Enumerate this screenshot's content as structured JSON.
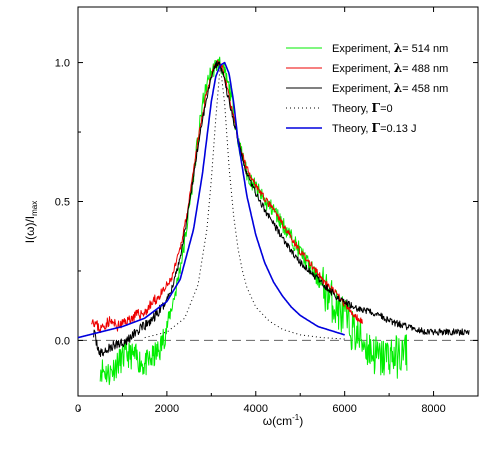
{
  "chart_data": {
    "type": "line",
    "xlabel": "ω(cm⁻¹)",
    "ylabel": "I(ω)/Imax",
    "xlim": [
      0,
      9000
    ],
    "ylim": [
      -0.2,
      1.2
    ],
    "xticks": [
      0,
      2000,
      4000,
      6000,
      8000
    ],
    "yticks": [
      0.0,
      0.5,
      1.0
    ],
    "ytick_labels": [
      "0.0",
      "0.5",
      "1.0"
    ],
    "grid": false,
    "legend_position": "top-right",
    "legend_entries": [
      {
        "prefix": "Experiment, ",
        "symbol": "λ",
        "suffix": "= 514 nm",
        "color": "#00ee00",
        "style": "solid"
      },
      {
        "prefix": "Experiment, ",
        "symbol": "λ",
        "suffix": "= 488 nm",
        "color": "#ee0000",
        "style": "solid"
      },
      {
        "prefix": "Experiment, ",
        "symbol": "λ",
        "suffix": "= 458 nm",
        "color": "#000000",
        "style": "solid"
      },
      {
        "prefix": "Theory, ",
        "symbol": "Γ",
        "suffix": "=0",
        "color": "#000000",
        "style": "dotted"
      },
      {
        "prefix": "Theory, ",
        "symbol": "Γ",
        "suffix": "=0.13 J",
        "color": "#0000dd",
        "style": "solid"
      }
    ],
    "baseline": {
      "y": 0.0,
      "style": "dashed",
      "color": "#666666"
    },
    "series": [
      {
        "name": "Experiment, λ= 514 nm",
        "color": "#00ee00",
        "width": 1,
        "noise": 0.03,
        "seed": 11,
        "x": [
          500,
          700,
          900,
          1100,
          1300,
          1500,
          1700,
          1850,
          2000,
          2200,
          2400,
          2600,
          2800,
          2950,
          3100,
          3200,
          3300,
          3450,
          3600,
          3800,
          4000,
          4200,
          4400,
          4600,
          4800,
          5000,
          5200,
          5400,
          5600,
          5800,
          6000,
          6200,
          6400,
          6600,
          6800,
          7000,
          7200,
          7400
        ],
        "y": [
          -0.1,
          -0.12,
          -0.08,
          -0.05,
          -0.06,
          -0.09,
          -0.06,
          -0.03,
          0.05,
          0.18,
          0.35,
          0.6,
          0.85,
          0.95,
          0.99,
          1.0,
          0.96,
          0.88,
          0.72,
          0.6,
          0.55,
          0.5,
          0.47,
          0.42,
          0.37,
          0.32,
          0.27,
          0.22,
          0.17,
          0.12,
          0.08,
          0.03,
          0.0,
          -0.04,
          -0.07,
          -0.05,
          -0.06,
          -0.04
        ]
      },
      {
        "name": "Experiment, λ= 488 nm",
        "color": "#ee0000",
        "width": 1,
        "noise": 0.012,
        "seed": 23,
        "x": [
          300,
          500,
          700,
          900,
          1100,
          1300,
          1500,
          1700,
          1900,
          2100,
          2300,
          2500,
          2700,
          2900,
          3050,
          3150,
          3250,
          3400,
          3600,
          3800,
          4000,
          4200,
          4400,
          4600,
          4800,
          5000,
          5200,
          5400,
          5600,
          5800,
          6000,
          6200,
          6400
        ],
        "y": [
          0.08,
          0.04,
          0.07,
          0.05,
          0.07,
          0.09,
          0.1,
          0.14,
          0.17,
          0.22,
          0.33,
          0.5,
          0.72,
          0.9,
          0.98,
          1.0,
          0.98,
          0.88,
          0.72,
          0.62,
          0.56,
          0.51,
          0.47,
          0.42,
          0.37,
          0.32,
          0.28,
          0.24,
          0.2,
          0.17,
          0.13,
          0.09,
          0.07
        ]
      },
      {
        "name": "Experiment, λ= 458 nm",
        "color": "#000000",
        "width": 1,
        "noise": 0.012,
        "seed": 37,
        "x": [
          350,
          500,
          700,
          900,
          1100,
          1300,
          1500,
          1700,
          1900,
          2100,
          2300,
          2500,
          2700,
          2900,
          3050,
          3150,
          3250,
          3400,
          3600,
          3800,
          4000,
          4200,
          4400,
          4600,
          4800,
          5000,
          5200,
          5400,
          5600,
          5800,
          6000,
          6200,
          6400,
          6600,
          6800,
          7000,
          7200,
          7400,
          7600,
          7800,
          8000,
          8200,
          8400,
          8600,
          8800
        ],
        "y": [
          0.03,
          -0.05,
          -0.03,
          -0.01,
          0.0,
          0.03,
          0.05,
          0.08,
          0.12,
          0.18,
          0.3,
          0.48,
          0.7,
          0.88,
          0.98,
          1.0,
          0.97,
          0.86,
          0.72,
          0.6,
          0.53,
          0.47,
          0.42,
          0.37,
          0.32,
          0.28,
          0.25,
          0.22,
          0.19,
          0.16,
          0.14,
          0.12,
          0.11,
          0.1,
          0.09,
          0.07,
          0.06,
          0.05,
          0.04,
          0.03,
          0.03,
          0.03,
          0.03,
          0.03,
          0.03
        ]
      },
      {
        "name": "Theory, Γ=0",
        "color": "#000000",
        "width": 1,
        "dash": "1,3",
        "noise": 0,
        "seed": 0,
        "x": [
          1500,
          2000,
          2400,
          2700,
          2900,
          3000,
          3100,
          3200,
          3300,
          3400,
          3500,
          3600,
          3700,
          3800,
          4000,
          4300,
          4600,
          5000,
          5500,
          6000
        ],
        "y": [
          0.01,
          0.03,
          0.08,
          0.2,
          0.4,
          0.58,
          0.8,
          0.99,
          0.85,
          0.62,
          0.45,
          0.33,
          0.25,
          0.19,
          0.12,
          0.07,
          0.04,
          0.02,
          0.01,
          0.005
        ]
      },
      {
        "name": "Theory, Γ=0.13 J",
        "color": "#0000dd",
        "width": 1.6,
        "noise": 0,
        "seed": 0,
        "x": [
          0,
          500,
          1000,
          1500,
          2000,
          2300,
          2600,
          2800,
          3000,
          3100,
          3200,
          3300,
          3400,
          3500,
          3600,
          3800,
          4000,
          4200,
          4400,
          4600,
          4800,
          5000,
          5200,
          5400,
          5600,
          5800,
          6000
        ],
        "y": [
          0.01,
          0.03,
          0.05,
          0.08,
          0.14,
          0.22,
          0.4,
          0.6,
          0.86,
          0.95,
          0.99,
          1.0,
          0.96,
          0.86,
          0.72,
          0.52,
          0.38,
          0.28,
          0.21,
          0.16,
          0.12,
          0.09,
          0.07,
          0.05,
          0.04,
          0.03,
          0.02
        ]
      }
    ]
  }
}
